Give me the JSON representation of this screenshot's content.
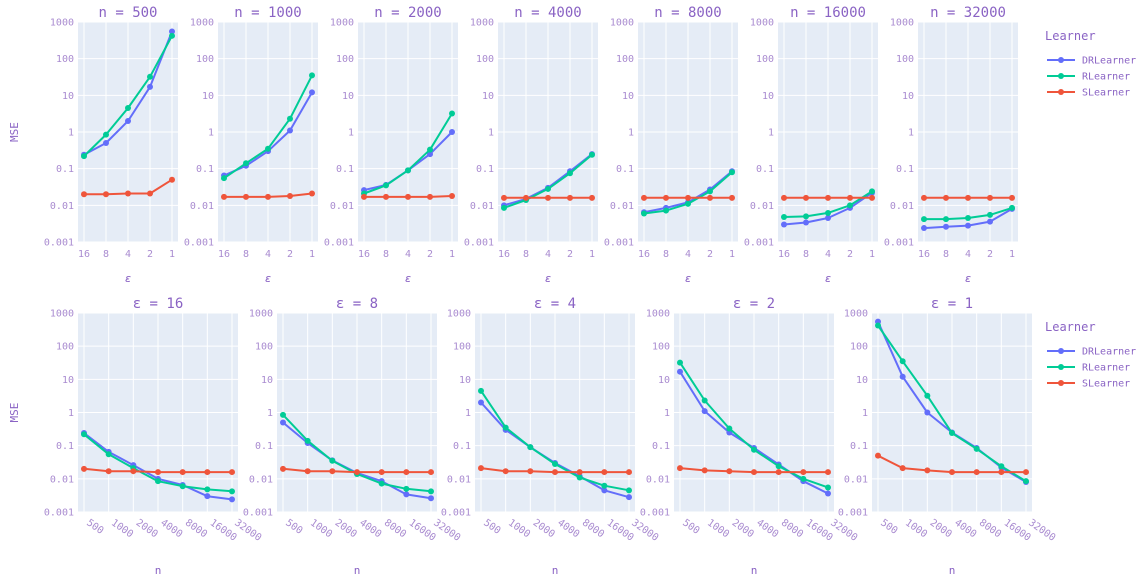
{
  "legend": {
    "title": "Learner",
    "items": [
      {
        "name": "DRLearner",
        "color": "#636efa"
      },
      {
        "name": "RLearner",
        "color": "#00cc96"
      },
      {
        "name": "SLearner",
        "color": "#ef553b"
      }
    ]
  },
  "chart_data": [
    {
      "type": "line",
      "row": "top",
      "title": "n = 500",
      "xlabel": "ε",
      "ylabel": "MSE",
      "yscale": "log",
      "ylim": [
        0.001,
        1000
      ],
      "ytick_labels": [
        "0.001",
        "0.01",
        "0.1",
        "1",
        "10",
        "100",
        "1000"
      ],
      "categories": [
        "16",
        "8",
        "4",
        "2",
        "1"
      ],
      "series": [
        {
          "name": "DRLearner",
          "values": [
            0.24,
            0.5,
            2,
            17,
            550
          ]
        },
        {
          "name": "RLearner",
          "values": [
            0.22,
            0.85,
            4.5,
            32,
            420
          ]
        },
        {
          "name": "SLearner",
          "values": [
            0.02,
            0.02,
            0.021,
            0.021,
            0.05
          ]
        }
      ]
    },
    {
      "type": "line",
      "row": "top",
      "title": "n = 1000",
      "xlabel": "ε",
      "ylabel": "",
      "yscale": "log",
      "ylim": [
        0.001,
        1000
      ],
      "ytick_labels": [
        "0.001",
        "0.01",
        "0.1",
        "1",
        "10",
        "100",
        "1000"
      ],
      "categories": [
        "16",
        "8",
        "4",
        "2",
        "1"
      ],
      "series": [
        {
          "name": "DRLearner",
          "values": [
            0.065,
            0.12,
            0.3,
            1.1,
            12
          ]
        },
        {
          "name": "RLearner",
          "values": [
            0.055,
            0.14,
            0.35,
            2.3,
            35
          ]
        },
        {
          "name": "SLearner",
          "values": [
            0.017,
            0.017,
            0.017,
            0.018,
            0.021
          ]
        }
      ]
    },
    {
      "type": "line",
      "row": "top",
      "title": "n = 2000",
      "xlabel": "ε",
      "ylabel": "",
      "yscale": "log",
      "ylim": [
        0.001,
        1000
      ],
      "ytick_labels": [
        "0.001",
        "0.01",
        "0.1",
        "1",
        "10",
        "100",
        "1000"
      ],
      "categories": [
        "16",
        "8",
        "4",
        "2",
        "1"
      ],
      "series": [
        {
          "name": "DRLearner",
          "values": [
            0.026,
            0.036,
            0.09,
            0.25,
            1
          ]
        },
        {
          "name": "RLearner",
          "values": [
            0.021,
            0.035,
            0.09,
            0.33,
            3.2
          ]
        },
        {
          "name": "SLearner",
          "values": [
            0.017,
            0.017,
            0.017,
            0.017,
            0.018
          ]
        }
      ]
    },
    {
      "type": "line",
      "row": "top",
      "title": "n = 4000",
      "xlabel": "ε",
      "ylabel": "",
      "yscale": "log",
      "ylim": [
        0.001,
        1000
      ],
      "ytick_labels": [
        "0.001",
        "0.01",
        "0.1",
        "1",
        "10",
        "100",
        "1000"
      ],
      "categories": [
        "16",
        "8",
        "4",
        "2",
        "1"
      ],
      "series": [
        {
          "name": "DRLearner",
          "values": [
            0.01,
            0.015,
            0.03,
            0.085,
            0.25
          ]
        },
        {
          "name": "RLearner",
          "values": [
            0.0085,
            0.014,
            0.028,
            0.075,
            0.24
          ]
        },
        {
          "name": "SLearner",
          "values": [
            0.016,
            0.016,
            0.016,
            0.016,
            0.016
          ]
        }
      ]
    },
    {
      "type": "line",
      "row": "top",
      "title": "n = 8000",
      "xlabel": "ε",
      "ylabel": "",
      "yscale": "log",
      "ylim": [
        0.001,
        1000
      ],
      "ytick_labels": [
        "0.001",
        "0.01",
        "0.1",
        "1",
        "10",
        "100",
        "1000"
      ],
      "categories": [
        "16",
        "8",
        "4",
        "2",
        "1"
      ],
      "series": [
        {
          "name": "DRLearner",
          "values": [
            0.0065,
            0.0085,
            0.012,
            0.027,
            0.085
          ]
        },
        {
          "name": "RLearner",
          "values": [
            0.006,
            0.0072,
            0.011,
            0.024,
            0.08
          ]
        },
        {
          "name": "SLearner",
          "values": [
            0.016,
            0.016,
            0.016,
            0.016,
            0.016
          ]
        }
      ]
    },
    {
      "type": "line",
      "row": "top",
      "title": "n = 16000",
      "xlabel": "ε",
      "ylabel": "",
      "yscale": "log",
      "ylim": [
        0.001,
        1000
      ],
      "ytick_labels": [
        "0.001",
        "0.01",
        "0.1",
        "1",
        "10",
        "100",
        "1000"
      ],
      "categories": [
        "16",
        "8",
        "4",
        "2",
        "1"
      ],
      "series": [
        {
          "name": "DRLearner",
          "values": [
            0.003,
            0.0034,
            0.0045,
            0.0085,
            0.022
          ]
        },
        {
          "name": "RLearner",
          "values": [
            0.0048,
            0.005,
            0.0062,
            0.01,
            0.024
          ]
        },
        {
          "name": "SLearner",
          "values": [
            0.016,
            0.016,
            0.016,
            0.016,
            0.016
          ]
        }
      ]
    },
    {
      "type": "line",
      "row": "top",
      "title": "n = 32000",
      "xlabel": "ε",
      "ylabel": "",
      "yscale": "log",
      "ylim": [
        0.001,
        1000
      ],
      "ytick_labels": [
        "0.001",
        "0.01",
        "0.1",
        "1",
        "10",
        "100",
        "1000"
      ],
      "categories": [
        "16",
        "8",
        "4",
        "2",
        "1"
      ],
      "series": [
        {
          "name": "DRLearner",
          "values": [
            0.0024,
            0.0026,
            0.0028,
            0.0036,
            0.008
          ]
        },
        {
          "name": "RLearner",
          "values": [
            0.0042,
            0.0042,
            0.0045,
            0.0055,
            0.0085
          ]
        },
        {
          "name": "SLearner",
          "values": [
            0.016,
            0.016,
            0.016,
            0.016,
            0.016
          ]
        }
      ]
    },
    {
      "type": "line",
      "row": "bottom",
      "title": "ε = 16",
      "xlabel": "n",
      "ylabel": "MSE",
      "yscale": "log",
      "ylim": [
        0.001,
        1000
      ],
      "ytick_labels": [
        "0.001",
        "0.01",
        "0.1",
        "1",
        "10",
        "100",
        "1000"
      ],
      "categories": [
        "500",
        "1000",
        "2000",
        "4000",
        "8000",
        "16000",
        "32000"
      ],
      "series": [
        {
          "name": "DRLearner",
          "values": [
            0.24,
            0.065,
            0.026,
            0.01,
            0.0065,
            0.003,
            0.0024
          ]
        },
        {
          "name": "RLearner",
          "values": [
            0.22,
            0.055,
            0.021,
            0.0085,
            0.006,
            0.0048,
            0.0042
          ]
        },
        {
          "name": "SLearner",
          "values": [
            0.02,
            0.017,
            0.017,
            0.016,
            0.016,
            0.016,
            0.016
          ]
        }
      ]
    },
    {
      "type": "line",
      "row": "bottom",
      "title": "ε = 8",
      "xlabel": "n",
      "ylabel": "",
      "yscale": "log",
      "ylim": [
        0.001,
        1000
      ],
      "ytick_labels": [
        "0.001",
        "0.01",
        "0.1",
        "1",
        "10",
        "100",
        "1000"
      ],
      "categories": [
        "500",
        "1000",
        "2000",
        "4000",
        "8000",
        "16000",
        "32000"
      ],
      "series": [
        {
          "name": "DRLearner",
          "values": [
            0.5,
            0.12,
            0.036,
            0.015,
            0.0085,
            0.0034,
            0.0026
          ]
        },
        {
          "name": "RLearner",
          "values": [
            0.85,
            0.14,
            0.035,
            0.014,
            0.0072,
            0.005,
            0.0042
          ]
        },
        {
          "name": "SLearner",
          "values": [
            0.02,
            0.017,
            0.017,
            0.016,
            0.016,
            0.016,
            0.016
          ]
        }
      ]
    },
    {
      "type": "line",
      "row": "bottom",
      "title": "ε = 4",
      "xlabel": "n",
      "ylabel": "",
      "yscale": "log",
      "ylim": [
        0.001,
        1000
      ],
      "ytick_labels": [
        "0.001",
        "0.01",
        "0.1",
        "1",
        "10",
        "100",
        "1000"
      ],
      "categories": [
        "500",
        "1000",
        "2000",
        "4000",
        "8000",
        "16000",
        "32000"
      ],
      "series": [
        {
          "name": "DRLearner",
          "values": [
            2,
            0.3,
            0.09,
            0.03,
            0.012,
            0.0045,
            0.0028
          ]
        },
        {
          "name": "RLearner",
          "values": [
            4.5,
            0.35,
            0.09,
            0.028,
            0.011,
            0.0062,
            0.0045
          ]
        },
        {
          "name": "SLearner",
          "values": [
            0.021,
            0.017,
            0.017,
            0.016,
            0.016,
            0.016,
            0.016
          ]
        }
      ]
    },
    {
      "type": "line",
      "row": "bottom",
      "title": "ε = 2",
      "xlabel": "n",
      "ylabel": "",
      "yscale": "log",
      "ylim": [
        0.001,
        1000
      ],
      "ytick_labels": [
        "0.001",
        "0.01",
        "0.1",
        "1",
        "10",
        "100",
        "1000"
      ],
      "categories": [
        "500",
        "1000",
        "2000",
        "4000",
        "8000",
        "16000",
        "32000"
      ],
      "series": [
        {
          "name": "DRLearner",
          "values": [
            17,
            1.1,
            0.25,
            0.085,
            0.027,
            0.0085,
            0.0036
          ]
        },
        {
          "name": "RLearner",
          "values": [
            32,
            2.3,
            0.33,
            0.075,
            0.024,
            0.01,
            0.0055
          ]
        },
        {
          "name": "SLearner",
          "values": [
            0.021,
            0.018,
            0.017,
            0.016,
            0.016,
            0.016,
            0.016
          ]
        }
      ]
    },
    {
      "type": "line",
      "row": "bottom",
      "title": "ε = 1",
      "xlabel": "n",
      "ylabel": "",
      "yscale": "log",
      "ylim": [
        0.001,
        1000
      ],
      "ytick_labels": [
        "0.001",
        "0.01",
        "0.1",
        "1",
        "10",
        "100",
        "1000"
      ],
      "categories": [
        "500",
        "1000",
        "2000",
        "4000",
        "8000",
        "16000",
        "32000"
      ],
      "series": [
        {
          "name": "DRLearner",
          "values": [
            550,
            12,
            1,
            0.25,
            0.085,
            0.022,
            0.008
          ]
        },
        {
          "name": "RLearner",
          "values": [
            420,
            35,
            3.2,
            0.24,
            0.08,
            0.024,
            0.0085
          ]
        },
        {
          "name": "SLearner",
          "values": [
            0.05,
            0.021,
            0.018,
            0.016,
            0.016,
            0.016,
            0.016
          ]
        }
      ]
    }
  ]
}
